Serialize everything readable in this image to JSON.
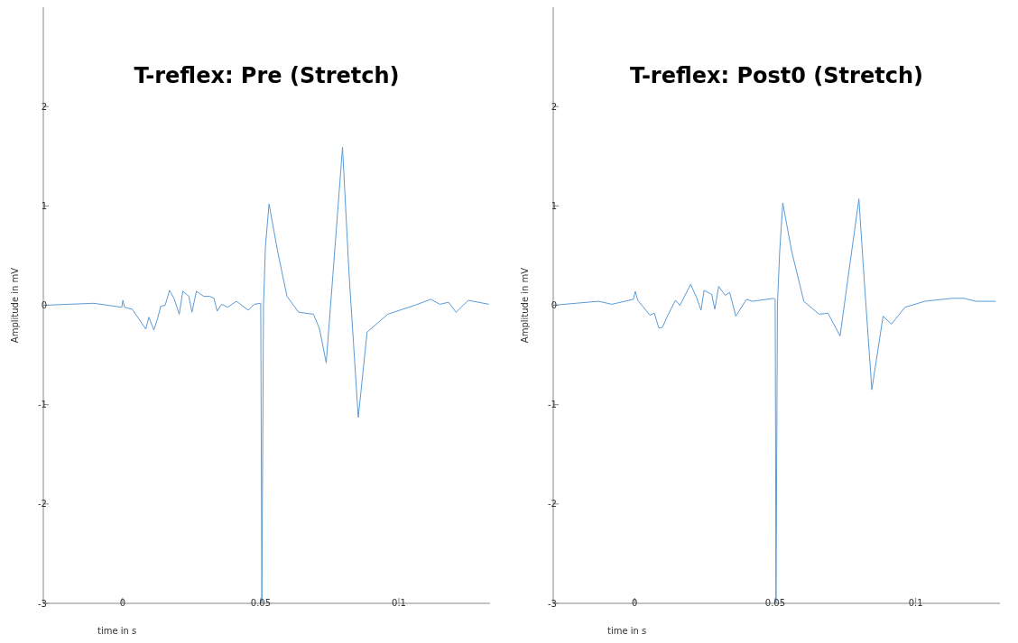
{
  "chart_data": [
    {
      "type": "line",
      "title": "T-reflex: Pre (Stretch)",
      "xlabel": "time in s",
      "ylabel": "Amplitude in mV",
      "xlim": [
        -0.0287,
        0.133
      ],
      "ylim": [
        -3,
        3
      ],
      "xticks": [
        0,
        0.05,
        0.1
      ],
      "yticks": [
        -3,
        -2,
        -1,
        0,
        1,
        2
      ],
      "marker": "none",
      "line_style": "solid",
      "series": [
        {
          "color": "#5b9bd5",
          "x": [
            -0.0287,
            -0.0104,
            -0.0003,
            0.0001,
            0.0007,
            0.0035,
            0.0084,
            0.0095,
            0.0113,
            0.0127,
            0.0138,
            0.0154,
            0.017,
            0.0186,
            0.0205,
            0.0218,
            0.024,
            0.0251,
            0.0267,
            0.0294,
            0.0315,
            0.0331,
            0.0342,
            0.0358,
            0.038,
            0.0412,
            0.0455,
            0.0476,
            0.05,
            0.0504,
            0.051,
            0.0517,
            0.053,
            0.0562,
            0.0595,
            0.0637,
            0.0691,
            0.0713,
            0.0737,
            0.0761,
            0.0796,
            0.082,
            0.0853,
            0.0885,
            0.096,
            0.1057,
            0.1116,
            0.1148,
            0.118,
            0.1207,
            0.1251,
            0.1326
          ],
          "values": [
            0,
            0.02,
            -0.02,
            0.05,
            -0.02,
            -0.04,
            -0.24,
            -0.12,
            -0.25,
            -0.13,
            -0.01,
            0,
            0.15,
            0.07,
            -0.09,
            0.14,
            0.09,
            -0.07,
            0.14,
            0.09,
            0.09,
            0.07,
            -0.06,
            0.01,
            -0.02,
            0.04,
            -0.05,
            0.01,
            0.02,
            -3,
            0,
            0.59,
            1.02,
            0.53,
            0.09,
            -0.07,
            -0.09,
            -0.24,
            -0.58,
            0.3,
            1.59,
            0.3,
            -1.13,
            -0.27,
            -0.09,
            0,
            0.06,
            0.01,
            0.03,
            -0.07,
            0.05,
            0.01
          ]
        }
      ]
    },
    {
      "type": "line",
      "title": "T-reflex: Post0 (Stretch)",
      "xlabel": "time in s",
      "ylabel": "Amplitude in mV",
      "xlim": [
        -0.029,
        0.13
      ],
      "ylim": [
        -3,
        3
      ],
      "xticks": [
        0,
        0.05,
        0.1
      ],
      "yticks": [
        -3,
        -2,
        -1,
        0,
        1,
        2
      ],
      "marker": "none",
      "line_style": "solid",
      "series": [
        {
          "color": "#5b9bd5",
          "x": [
            -0.029,
            -0.0129,
            -0.0081,
            -0.0005,
            0.0002,
            0.0011,
            0.0054,
            0.007,
            0.0086,
            0.0099,
            0.0118,
            0.0145,
            0.0161,
            0.0199,
            0.022,
            0.0236,
            0.0247,
            0.0274,
            0.0285,
            0.0299,
            0.0322,
            0.0338,
            0.036,
            0.0398,
            0.0419,
            0.0495,
            0.05,
            0.0503,
            0.0508,
            0.0516,
            0.0527,
            0.0559,
            0.0602,
            0.0656,
            0.0688,
            0.0731,
            0.0758,
            0.0798,
            0.0817,
            0.0844,
            0.0884,
            0.0914,
            0.0962,
            0.1032,
            0.1129,
            0.1172,
            0.1215,
            0.1285
          ],
          "values": [
            0,
            0.04,
            0.01,
            0.06,
            0.14,
            0.05,
            -0.1,
            -0.08,
            -0.23,
            -0.22,
            -0.1,
            0.05,
            0,
            0.21,
            0.08,
            -0.05,
            0.15,
            0.11,
            -0.04,
            0.19,
            0.1,
            0.13,
            -0.11,
            0.06,
            0.04,
            0.07,
            0.06,
            -3,
            0,
            0.54,
            1.03,
            0.54,
            0.04,
            -0.09,
            -0.08,
            -0.31,
            0.25,
            1.07,
            0.25,
            -0.85,
            -0.11,
            -0.19,
            -0.02,
            0.04,
            0.07,
            0.07,
            0.04,
            0.04
          ]
        }
      ]
    }
  ]
}
